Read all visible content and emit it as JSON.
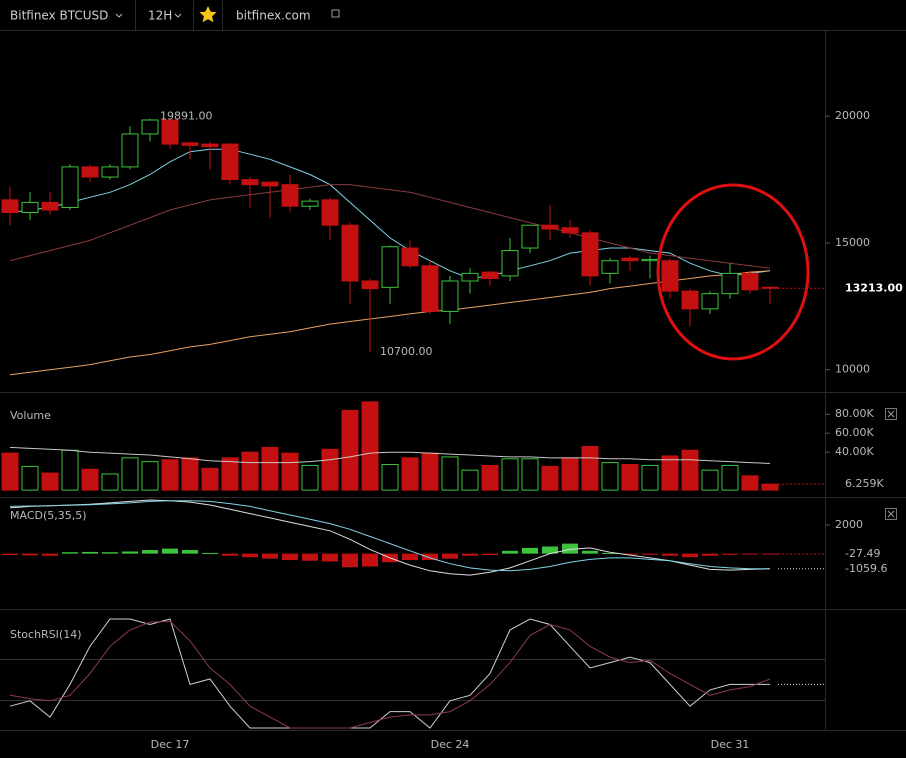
{
  "toolbar": {
    "symbol": "Bitfinex BTCUSD",
    "interval": "12H",
    "site": "bitfinex.com"
  },
  "chart_data": [
    {
      "type": "candlestick",
      "categories": [
        null,
        null,
        null,
        null,
        null,
        null,
        null,
        null,
        "Dec 17",
        null,
        null,
        null,
        null,
        null,
        null,
        null,
        null,
        null,
        null,
        null,
        null,
        null,
        "Dec 24",
        null,
        null,
        null,
        null,
        null,
        null,
        null,
        null,
        null,
        null,
        null,
        null,
        null,
        "Dec 31",
        null,
        null
      ],
      "open": [
        16700,
        16200,
        16600,
        16400,
        18000,
        17600,
        18000,
        19300,
        19850,
        18950,
        18900,
        18900,
        17500,
        17400,
        17300,
        16450,
        16700,
        15700,
        13500,
        13250,
        14800,
        14100,
        12300,
        13500,
        13850,
        13700,
        14800,
        15700,
        15600,
        15400,
        13800,
        14400,
        14300,
        14300,
        13100,
        12400,
        13000,
        13800,
        13250
      ],
      "high": [
        17200,
        17000,
        17000,
        18100,
        18100,
        18100,
        19600,
        19900,
        19891,
        19000,
        19000,
        18950,
        17600,
        17400,
        17700,
        16750,
        16800,
        15800,
        13600,
        14900,
        15100,
        14300,
        13700,
        14000,
        13900,
        15200,
        15700,
        16500,
        15900,
        15500,
        14400,
        14500,
        14500,
        14400,
        13200,
        13100,
        14200,
        13900,
        13300
      ],
      "low": [
        15700,
        15900,
        16100,
        16300,
        17400,
        17500,
        17900,
        19000,
        18700,
        18300,
        17900,
        17300,
        16400,
        16000,
        16200,
        16300,
        15100,
        12600,
        10700,
        12600,
        14000,
        12200,
        11800,
        13000,
        13300,
        13500,
        14600,
        15100,
        15200,
        13300,
        13400,
        13900,
        13600,
        12800,
        11700,
        12200,
        12800,
        13000,
        12600
      ],
      "close": [
        16200,
        16600,
        16300,
        18000,
        17600,
        18000,
        19300,
        19850,
        18900,
        18850,
        18800,
        17500,
        17300,
        17250,
        16450,
        16650,
        15700,
        13500,
        13200,
        14850,
        14100,
        12300,
        13500,
        13800,
        13600,
        14700,
        15700,
        15550,
        15400,
        13700,
        14300,
        14300,
        14350,
        13100,
        12400,
        13000,
        13800,
        13150,
        13213
      ],
      "up_color": "#3cc43c",
      "down_color": "#c41010",
      "series": [
        {
          "color": "#7fd3e6",
          "values": [
            16200,
            16300,
            16400,
            16600,
            16800,
            17000,
            17300,
            17700,
            18200,
            18600,
            18700,
            18700,
            18500,
            18300,
            18000,
            17700,
            17300,
            16600,
            15900,
            15200,
            14700,
            14300,
            13900,
            13600,
            13700,
            13900,
            14100,
            14300,
            14600,
            14700,
            14800,
            14800,
            14700,
            14600,
            14200,
            13900,
            13700,
            13800,
            13900
          ]
        },
        {
          "color": "#8a3b3b",
          "values": [
            14300,
            14500,
            14700,
            14900,
            15100,
            15400,
            15700,
            16000,
            16300,
            16500,
            16700,
            16800,
            16900,
            17000,
            17100,
            17200,
            17300,
            17300,
            17200,
            17100,
            17000,
            16800,
            16600,
            16400,
            16200,
            16000,
            15800,
            15600,
            15400,
            15200,
            15000,
            14800,
            14600,
            14500,
            14400,
            14300,
            14200,
            14100,
            14000
          ]
        },
        {
          "color": "#e8a060",
          "values": [
            9800,
            9900,
            10000,
            10100,
            10200,
            10350,
            10500,
            10600,
            10750,
            10900,
            11000,
            11150,
            11300,
            11400,
            11500,
            11650,
            11800,
            11900,
            12000,
            12100,
            12200,
            12300,
            12350,
            12450,
            12550,
            12650,
            12750,
            12850,
            12950,
            13050,
            13200,
            13300,
            13400,
            13500,
            13600,
            13700,
            13750,
            13850,
            13900
          ]
        }
      ],
      "max_label": "19891.00",
      "min_label": "10700.00",
      "last_label": "13213.00",
      "ylim": [
        9200,
        23400
      ],
      "yticks": [
        10000,
        15000,
        20000
      ]
    },
    {
      "type": "bar",
      "title": "Volume",
      "values": [
        39000,
        25000,
        18000,
        42000,
        22000,
        17000,
        34000,
        30000,
        32000,
        34000,
        23000,
        34000,
        40000,
        45000,
        39000,
        26000,
        43000,
        84000,
        93000,
        27000,
        34000,
        39000,
        35000,
        21000,
        26000,
        33000,
        33000,
        25000,
        34000,
        46000,
        29000,
        27000,
        26000,
        36000,
        42000,
        21000,
        26000,
        15000,
        6259
      ],
      "series": [
        {
          "color": "#c8c8c8",
          "values": [
            45000,
            44000,
            43000,
            42000,
            40000,
            39000,
            38000,
            37000,
            35000,
            33000,
            31000,
            30000,
            29000,
            29000,
            29000,
            30000,
            32000,
            35000,
            39000,
            40000,
            40000,
            39000,
            38000,
            37000,
            36000,
            35000,
            35000,
            34000,
            34000,
            34000,
            33000,
            33000,
            32000,
            32000,
            32000,
            31000,
            30000,
            29000,
            28000
          ]
        }
      ],
      "last_label": "6.259K",
      "ylim": [
        -2000,
        95000
      ],
      "yticks": [
        {
          "value": 40000,
          "label": "40.00K"
        },
        {
          "value": 60000,
          "label": "60.00K"
        },
        {
          "value": 80000,
          "label": "80.00K"
        }
      ]
    },
    {
      "type": "macd",
      "title": "MACD(5,35,5)",
      "values": [
        -100,
        -120,
        -150,
        100,
        120,
        100,
        150,
        250,
        350,
        250,
        50,
        -150,
        -250,
        -350,
        -450,
        -500,
        -550,
        -950,
        -900,
        -600,
        -450,
        -450,
        -350,
        -150,
        -100,
        200,
        400,
        500,
        700,
        200,
        50,
        -50,
        -80,
        -150,
        -250,
        -150,
        -80,
        -50,
        -27.49
      ],
      "series": [
        {
          "color": "#dddddd",
          "values": [
            3200,
            3300,
            3350,
            3400,
            3450,
            3550,
            3650,
            3750,
            3700,
            3600,
            3400,
            3100,
            2800,
            2500,
            2200,
            1900,
            1600,
            1000,
            300,
            -300,
            -800,
            -1200,
            -1400,
            -1500,
            -1300,
            -1000,
            -500,
            0,
            300,
            400,
            100,
            -100,
            -300,
            -500,
            -800,
            -1100,
            -1150,
            -1100,
            -1059.6
          ]
        },
        {
          "color": "#7fd3e6",
          "values": [
            3300,
            3330,
            3350,
            3380,
            3420,
            3480,
            3550,
            3650,
            3700,
            3700,
            3650,
            3500,
            3300,
            3000,
            2700,
            2400,
            2100,
            1700,
            1200,
            700,
            200,
            -300,
            -700,
            -1000,
            -1150,
            -1200,
            -1100,
            -900,
            -600,
            -400,
            -300,
            -300,
            -400,
            -500,
            -700,
            -900,
            -1000,
            -1050,
            -1050
          ]
        }
      ],
      "ylim": [
        -3800,
        3750
      ],
      "yticks": [
        2000
      ]
    },
    {
      "type": "line",
      "title": "StochRSI(14)",
      "series": [
        {
          "color": "#d0d0d0",
          "values": [
            20,
            25,
            10,
            40,
            75,
            100,
            100,
            95,
            100,
            40,
            45,
            20,
            0,
            0,
            0,
            0,
            0,
            0,
            0,
            15,
            15,
            0,
            25,
            30,
            50,
            90,
            100,
            95,
            75,
            55,
            60,
            65,
            60,
            40,
            20,
            35,
            40,
            40,
            40
          ]
        },
        {
          "color": "#8a3b4b",
          "values": [
            30,
            27,
            25,
            30,
            50,
            75,
            90,
            97,
            98,
            80,
            55,
            40,
            20,
            10,
            0,
            0,
            0,
            0,
            5,
            10,
            12,
            12,
            15,
            25,
            40,
            60,
            85,
            95,
            90,
            75,
            65,
            60,
            62,
            50,
            40,
            30,
            35,
            38,
            45
          ]
        }
      ],
      "ylim": [
        0,
        100
      ]
    }
  ]
}
